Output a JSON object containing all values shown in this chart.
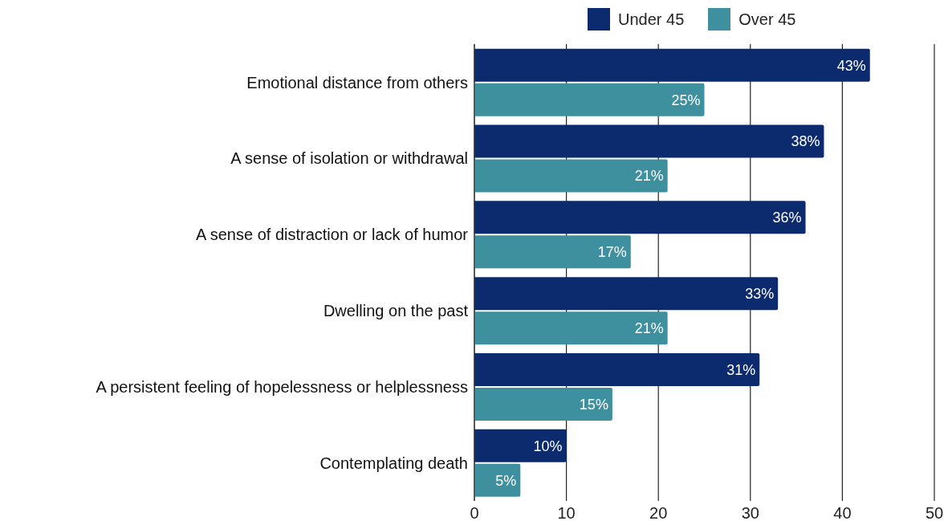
{
  "chart_data": {
    "type": "bar",
    "orientation": "horizontal",
    "categories": [
      "Emotional distance from others",
      "A sense of isolation or withdrawal",
      "A sense of distraction or lack of humor",
      "Dwelling on the past",
      "A persistent feeling of hopelessness or helplessness",
      "Contemplating death"
    ],
    "series": [
      {
        "name": "Under 45",
        "color": "#0c2a6e",
        "values": [
          43,
          38,
          36,
          33,
          31,
          10
        ],
        "value_labels": [
          "43%",
          "38%",
          "36%",
          "33%",
          "31%",
          "10%"
        ]
      },
      {
        "name": "Over 45",
        "color": "#3f909f",
        "values": [
          25,
          21,
          17,
          21,
          15,
          5
        ],
        "value_labels": [
          "25%",
          "21%",
          "17%",
          "21%",
          "15%",
          "5%"
        ]
      }
    ],
    "xlim": [
      0,
      50
    ],
    "xticks": [
      0,
      10,
      20,
      30,
      40,
      50
    ],
    "grid": "x",
    "legend": "top"
  }
}
